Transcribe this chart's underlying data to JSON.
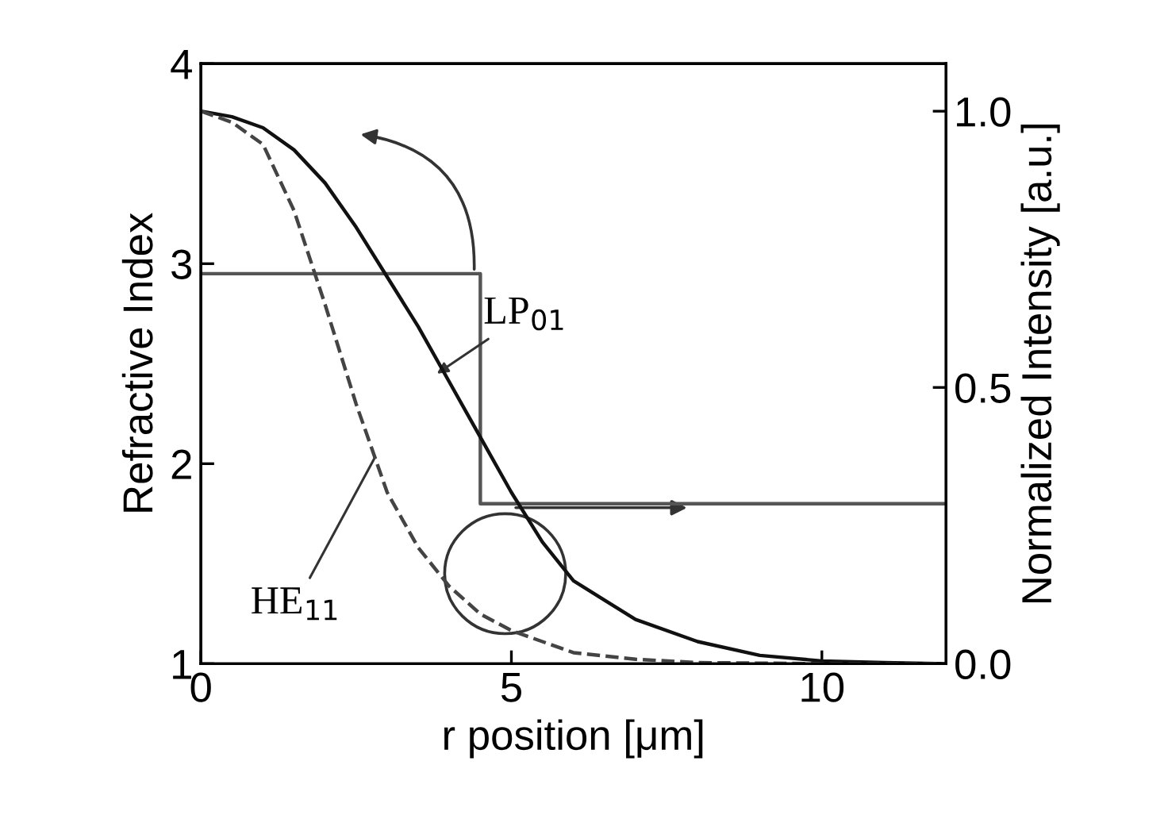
{
  "chart_data": {
    "type": "line",
    "xlabel": "r position [μm]",
    "ylabel": "Refractive Index",
    "y2label": "Normalized Intensity [a.u.]",
    "xlim": [
      0,
      12
    ],
    "ylim": [
      1,
      4
    ],
    "y2lim": [
      0,
      1.086
    ],
    "xticks": [
      0,
      5,
      10
    ],
    "yticks": [
      1,
      2,
      3,
      4
    ],
    "y2ticks": [
      {
        "value": 0,
        "label": "0.0"
      },
      {
        "value": 0.5,
        "label": "0.5"
      },
      {
        "value": 1,
        "label": "1.0"
      }
    ],
    "grid": false,
    "marker": "none",
    "series": [
      {
        "type": "step",
        "color": "#555555",
        "x": [
          0,
          4.5,
          12
        ],
        "values": [
          2.95,
          1.8,
          1.8
        ],
        "line_style": "solid"
      },
      {
        "axis": "y2",
        "color": "#111111",
        "line_style": "solid",
        "x": [
          0,
          0.5,
          1,
          1.5,
          2,
          2.5,
          3,
          3.5,
          4,
          4.5,
          5,
          5.5,
          6,
          7,
          8,
          9,
          10,
          11,
          12
        ],
        "values": [
          1.0,
          0.99,
          0.97,
          0.93,
          0.87,
          0.79,
          0.7,
          0.61,
          0.51,
          0.41,
          0.31,
          0.22,
          0.15,
          0.08,
          0.04,
          0.015,
          0.005,
          0.002,
          0
        ]
      },
      {
        "axis": "y2",
        "color": "#444444",
        "line_style": "dashed",
        "x": [
          0,
          0.5,
          1,
          1.5,
          2,
          2.5,
          3,
          3.5,
          4,
          4.5,
          5,
          6,
          7,
          8,
          10,
          12
        ],
        "values": [
          1.0,
          0.98,
          0.94,
          0.82,
          0.65,
          0.47,
          0.31,
          0.21,
          0.14,
          0.09,
          0.06,
          0.02,
          0.008,
          0.002,
          0,
          0
        ]
      }
    ],
    "annotations": [
      {
        "text": "LP$_{01}$",
        "x": 3.8,
        "y": 2.45
      },
      {
        "text": "HE$_{11}$",
        "x": 2.8,
        "y": 2.03
      }
    ]
  }
}
